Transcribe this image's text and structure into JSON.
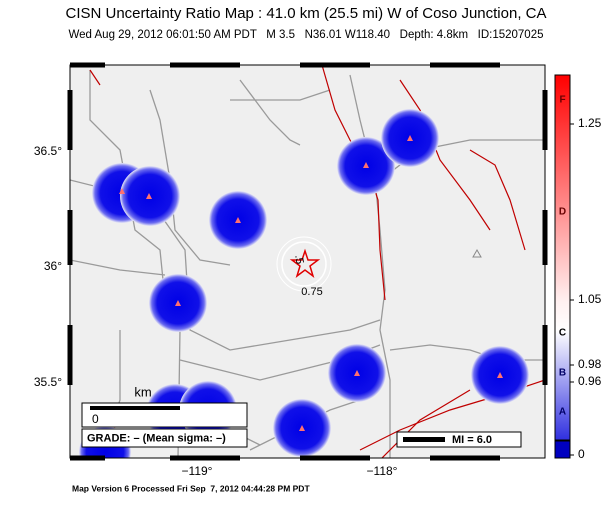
{
  "header": {
    "title": "CISN Uncertainty Ratio Map : 41.0 km (25.5 mi) W of Coso Junction, CA",
    "subtitle": "Wed Aug 29, 2012 06:01:50 AM PDT   M 3.5   N36.01 W118.40   Depth: 4.8km   ID:15207025"
  },
  "map": {
    "lat_labels": [
      "36.5°",
      "36°",
      "35.5°"
    ],
    "lon_labels": [
      "−119°",
      "−118°"
    ],
    "contour_labels": [
      ".5",
      "0.75"
    ],
    "scale": {
      "unit": "km",
      "zero": "0"
    },
    "grade": "GRADE: – (Mean sigma: –)",
    "intensity": "MI = 6.0"
  },
  "colorbar": {
    "grades": [
      "F",
      "D",
      "C",
      "B",
      "A"
    ],
    "ticks": [
      "1.25",
      "1.05",
      "0.98",
      "0.96",
      "0"
    ]
  },
  "footer": "Map Version 6 Processed Fri Sep  7, 2012 04:44:28 PM PDT"
}
